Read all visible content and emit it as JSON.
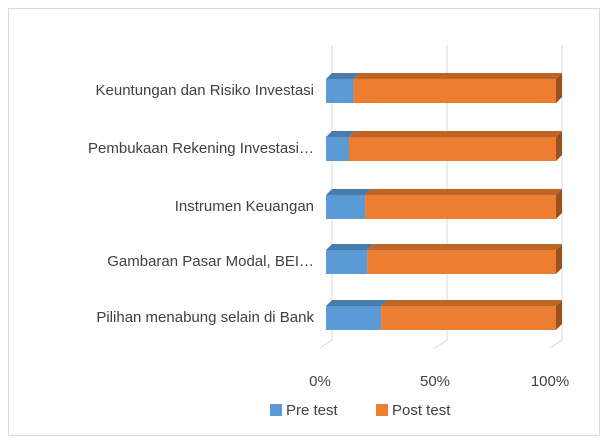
{
  "chart_data": {
    "type": "bar",
    "orientation": "horizontal",
    "stacked": true,
    "categories": [
      "Keuntungan dan Risiko Investasi",
      "Pembukaan Rekening Investasi…",
      "Instrumen Keuangan",
      "Gambaran Pasar Modal, BEI…",
      "Pilihan menabung selain di Bank"
    ],
    "series": [
      {
        "name": "Pre test",
        "color": "#5b9bd5",
        "values": [
          12,
          10,
          17,
          18,
          24
        ]
      },
      {
        "name": "Post test",
        "color": "#ed7d31",
        "values": [
          88,
          90,
          83,
          82,
          76
        ]
      }
    ],
    "xlim": [
      0,
      100
    ],
    "xticks": [
      {
        "value": 0,
        "label": "0%"
      },
      {
        "value": 50,
        "label": "50%"
      },
      {
        "value": 100,
        "label": "100%"
      }
    ],
    "grid": true,
    "legend": "bottom"
  }
}
